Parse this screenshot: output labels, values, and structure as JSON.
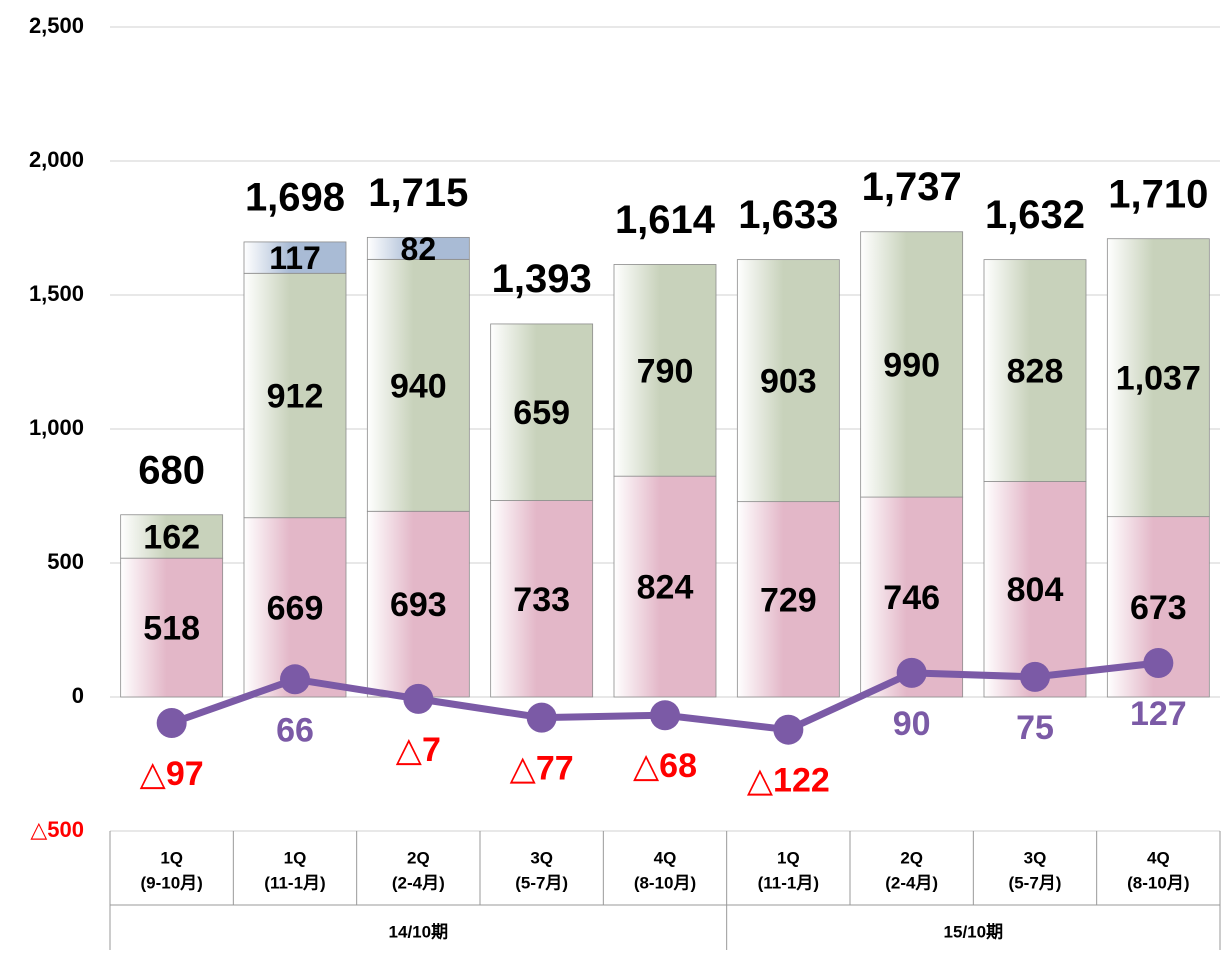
{
  "chart_data": {
    "type": "stacked_bar_line",
    "categories": [
      [
        "1Q",
        "(9-10月)"
      ],
      [
        "1Q",
        "(11-1月)"
      ],
      [
        "2Q",
        "(2-4月)"
      ],
      [
        "3Q",
        "(5-7月)"
      ],
      [
        "4Q",
        "(8-10月)"
      ],
      [
        "1Q",
        "(11-1月)"
      ],
      [
        "2Q",
        "(2-4月)"
      ],
      [
        "3Q",
        "(5-7月)"
      ],
      [
        "4Q",
        "(8-10月)"
      ]
    ],
    "groups": [
      {
        "label": "14/10期",
        "span": 5
      },
      {
        "label": "15/10期",
        "span": 4
      }
    ],
    "series": [
      {
        "color": "#e3b7c8",
        "values": [
          518,
          669,
          693,
          733,
          824,
          729,
          746,
          804,
          673
        ],
        "value_labels": [
          "518",
          "669",
          "693",
          "733",
          "824",
          "729",
          "746",
          "804",
          "673"
        ]
      },
      {
        "color": "#c8d2bb",
        "values": [
          162,
          912,
          940,
          659,
          790,
          903,
          990,
          828,
          1037
        ],
        "value_labels": [
          "162",
          "912",
          "940",
          "659",
          "790",
          "903",
          "990",
          "828",
          "1,037"
        ]
      },
      {
        "color": "#a9bbd5",
        "values": [
          null,
          117,
          82,
          null,
          null,
          null,
          null,
          null,
          null
        ],
        "value_labels": [
          null,
          "117",
          "82",
          null,
          null,
          null,
          null,
          null,
          null
        ]
      }
    ],
    "totals": {
      "values": [
        680,
        1698,
        1715,
        1393,
        1614,
        1633,
        1737,
        1632,
        1710
      ],
      "value_labels": [
        "680",
        "1,698",
        "1,715",
        "1,393",
        "1,614",
        "1,633",
        "1,737",
        "1,632",
        "1,710"
      ]
    },
    "line": {
      "color": "#7b5aa6",
      "negative_label_color": "#ff0000",
      "values": [
        -97,
        66,
        -7,
        -77,
        -68,
        -122,
        90,
        75,
        127
      ],
      "value_labels": [
        "△97",
        "66",
        "△7",
        "△77",
        "△68",
        "△122",
        "90",
        "75",
        "127"
      ]
    },
    "ylim": [
      -500,
      2500
    ],
    "yticks": [
      {
        "value": -500,
        "label": "△500"
      },
      0,
      500,
      {
        "value": 1000,
        "label": "1,000"
      },
      {
        "value": 1500,
        "label": "1,500"
      },
      {
        "value": 2000,
        "label": "2,000"
      },
      {
        "value": 2500,
        "label": "2,500"
      }
    ],
    "grid": true
  }
}
